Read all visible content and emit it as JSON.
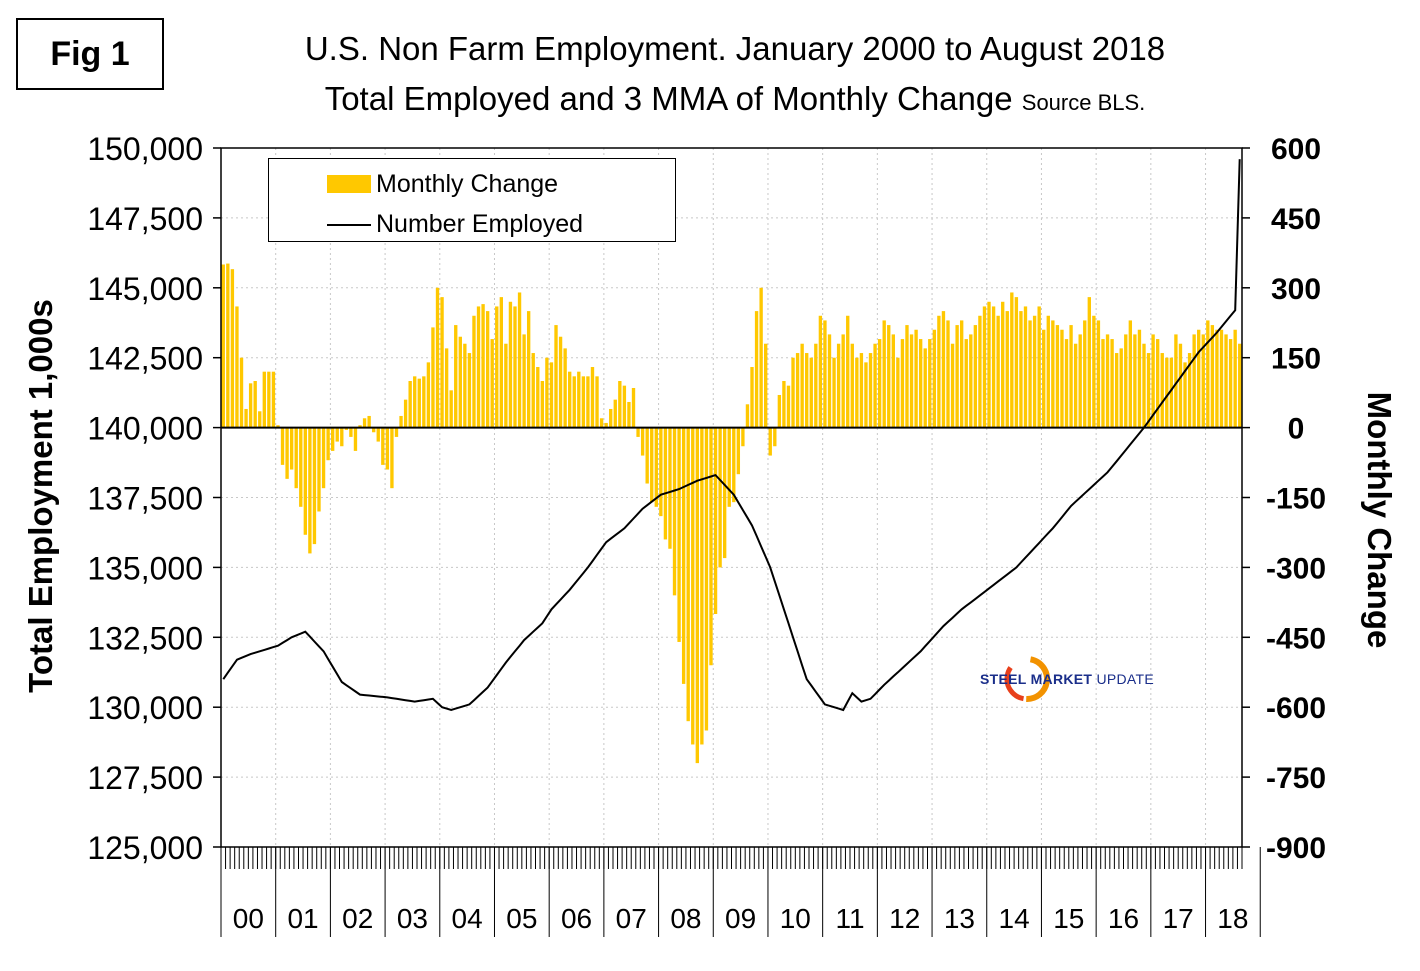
{
  "figure": {
    "label": "Fig 1",
    "title_line1": "U.S. Non Farm Employment. January 2000 to August 2018",
    "title_line2": "Total Employed and 3 MMA of Monthly Change",
    "title_source": "Source BLS.",
    "logo_text": "STEEL MARKET UPDATE",
    "logo_word1": "STEEL",
    "logo_word2": "MARKET",
    "logo_word3": "UPDATE"
  },
  "colors": {
    "bar": "#FFC800",
    "line": "#000000",
    "grid": "#c8c8c8",
    "logo_blue": "#1a2e8a",
    "logo_red": "#e8401c",
    "logo_orange": "#f29200"
  },
  "chart_data": {
    "type": "bar",
    "title": "U.S. Non Farm Employment. January 2000 to August 2018",
    "subtitle": "Total Employed and 3 MMA of Monthly Change",
    "ylabel_left": "Total Employment 1,000s",
    "ylabel_right": "Monthly Change",
    "ylim_left": [
      125000,
      150000
    ],
    "ylim_right": [
      -900,
      600
    ],
    "yticks_left": [
      "150,000",
      "147,500",
      "145,000",
      "142,500",
      "140,000",
      "137,500",
      "135,000",
      "132,500",
      "130,000",
      "127,500",
      "125,000"
    ],
    "yticks_right": [
      "600",
      "450",
      "300",
      "150",
      "0",
      "-150",
      "-300",
      "-450",
      "-600",
      "-750",
      "-900"
    ],
    "xtick_labels": [
      "00",
      "01",
      "02",
      "03",
      "04",
      "05",
      "06",
      "07",
      "08",
      "09",
      "10",
      "11",
      "12",
      "13",
      "14",
      "15",
      "16",
      "17",
      "18"
    ],
    "grid": true,
    "legend_position": "top-left",
    "series": [
      {
        "name": "Monthly Change",
        "axis": "right",
        "type": "bar",
        "yearly_anchors": [
          [
            350,
            352,
            340,
            260,
            150,
            40,
            95,
            100,
            35,
            120,
            120,
            120
          ],
          [
            5,
            -80,
            -110,
            -90,
            -130,
            -170,
            -230,
            -270,
            -250,
            -180,
            -130,
            -70
          ],
          [
            -50,
            -30,
            -40,
            -5,
            -20,
            -50,
            5,
            20,
            25,
            -10,
            -30,
            -80
          ],
          [
            -90,
            -130,
            -20,
            25,
            60,
            100,
            110,
            105,
            110,
            140,
            215,
            300
          ],
          [
            280,
            170,
            80,
            220,
            195,
            180,
            160,
            240,
            260,
            265,
            250,
            190
          ],
          [
            260,
            280,
            180,
            270,
            260,
            290,
            200,
            250,
            160,
            130,
            100,
            150
          ],
          [
            140,
            220,
            195,
            170,
            120,
            110,
            120,
            110,
            110,
            130,
            110,
            20
          ],
          [
            10,
            40,
            60,
            100,
            90,
            55,
            85,
            -20,
            -60,
            -120,
            -160,
            -170
          ],
          [
            -190,
            -240,
            -260,
            -360,
            -460,
            -550,
            -630,
            -680,
            -720,
            -680,
            -650,
            -510
          ],
          [
            -400,
            -300,
            -280,
            -170,
            -160,
            -100,
            -40,
            50,
            130,
            250,
            300,
            180
          ],
          [
            -60,
            -40,
            70,
            100,
            90,
            150,
            160,
            180,
            160,
            150,
            180,
            240
          ],
          [
            230,
            200,
            150,
            180,
            200,
            240,
            180,
            150,
            160,
            140,
            160,
            180
          ],
          [
            190,
            230,
            220,
            200,
            150,
            190,
            220,
            200,
            210,
            190,
            170,
            190
          ],
          [
            210,
            240,
            250,
            230,
            180,
            220,
            230,
            190,
            200,
            220,
            240,
            260
          ],
          [
            270,
            260,
            240,
            270,
            250,
            290,
            280,
            250,
            260,
            230,
            240,
            260
          ],
          [
            210,
            240,
            230,
            220,
            210,
            190,
            220,
            180,
            200,
            230,
            280,
            240
          ],
          [
            230,
            190,
            200,
            190,
            160,
            170,
            200,
            230,
            200,
            210,
            180,
            160
          ],
          [
            200,
            190,
            160,
            150,
            150,
            200,
            180,
            140,
            160,
            200,
            210,
            200
          ],
          [
            230,
            220,
            210,
            210,
            200,
            190,
            210,
            180
          ]
        ]
      },
      {
        "name": "Number Employed",
        "axis": "left",
        "type": "line",
        "monthly_anchors": [
          [
            0,
            131000
          ],
          [
            3,
            131700
          ],
          [
            6,
            131900
          ],
          [
            12,
            132200
          ],
          [
            15,
            132500
          ],
          [
            18,
            132700
          ],
          [
            22,
            132000
          ],
          [
            26,
            130900
          ],
          [
            30,
            130450
          ],
          [
            36,
            130350
          ],
          [
            42,
            130200
          ],
          [
            46,
            130300
          ],
          [
            48,
            130000
          ],
          [
            50,
            129900
          ],
          [
            54,
            130100
          ],
          [
            58,
            130700
          ],
          [
            62,
            131600
          ],
          [
            66,
            132400
          ],
          [
            70,
            133000
          ],
          [
            72,
            133500
          ],
          [
            76,
            134200
          ],
          [
            80,
            135000
          ],
          [
            84,
            135900
          ],
          [
            88,
            136400
          ],
          [
            92,
            137100
          ],
          [
            96,
            137600
          ],
          [
            100,
            137800
          ],
          [
            104,
            138100
          ],
          [
            108,
            138300
          ],
          [
            112,
            137600
          ],
          [
            116,
            136500
          ],
          [
            120,
            135000
          ],
          [
            124,
            133000
          ],
          [
            128,
            131000
          ],
          [
            132,
            130100
          ],
          [
            136,
            129900
          ],
          [
            138,
            130500
          ],
          [
            140,
            130200
          ],
          [
            142,
            130300
          ],
          [
            145,
            130800
          ],
          [
            149,
            131400
          ],
          [
            153,
            132000
          ],
          [
            158,
            132900
          ],
          [
            162,
            133500
          ],
          [
            166,
            134000
          ],
          [
            170,
            134500
          ],
          [
            174,
            135000
          ],
          [
            178,
            135700
          ],
          [
            182,
            136400
          ],
          [
            186,
            137200
          ],
          [
            190,
            137800
          ],
          [
            194,
            138400
          ],
          [
            198,
            139200
          ],
          [
            202,
            140000
          ],
          [
            206,
            140900
          ],
          [
            210,
            141800
          ],
          [
            214,
            142700
          ],
          [
            218,
            143400
          ],
          [
            222,
            144200
          ],
          [
            226,
            144900
          ],
          [
            230,
            145700
          ],
          [
            234,
            146400
          ],
          [
            238,
            147000
          ],
          [
            242,
            147900
          ],
          [
            246,
            148700
          ],
          [
            250,
            149500
          ],
          [
            223,
            149600
          ]
        ]
      }
    ]
  }
}
